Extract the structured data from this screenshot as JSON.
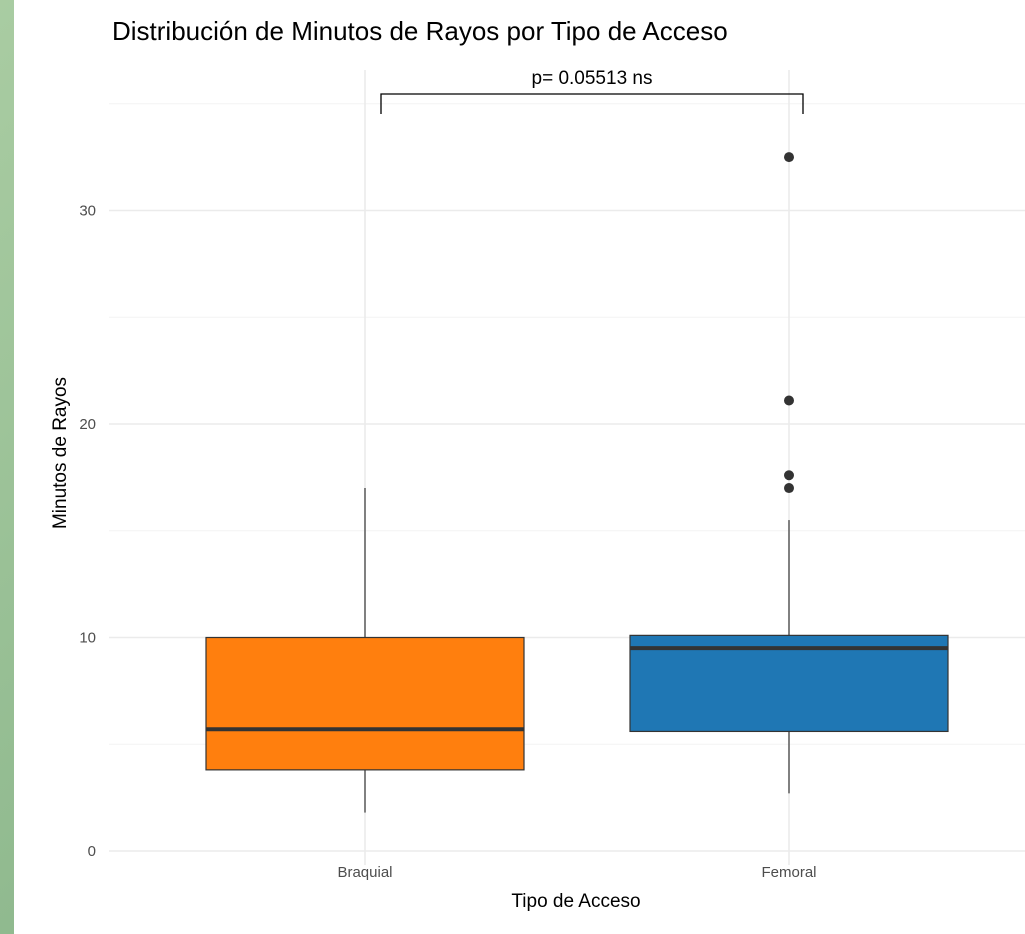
{
  "chart_data": {
    "type": "box",
    "title": "Distribución de Minutos de Rayos por Tipo de Acceso",
    "xlabel": "Tipo de Acceso",
    "ylabel": "Minutos de Rayos",
    "categories": [
      "Braquial",
      "Femoral"
    ],
    "yticks": [
      0,
      10,
      20,
      30
    ],
    "ylim": [
      -0.6,
      35.6
    ],
    "grid": true,
    "boxes": [
      {
        "category": "Braquial",
        "whisker_low": 1.8,
        "q1": 3.8,
        "median": 5.7,
        "q3": 10.0,
        "whisker_high": 17.0,
        "outliers": [],
        "color": "#ff7f0e"
      },
      {
        "category": "Femoral",
        "whisker_low": 2.7,
        "q1": 5.6,
        "median": 9.5,
        "q3": 10.1,
        "whisker_high": 15.5,
        "outliers": [
          17.0,
          17.6,
          21.1,
          32.5
        ],
        "color": "#1f77b4"
      }
    ],
    "annotation": {
      "text": "p= 0.05513 ns",
      "from": "Braquial",
      "to": "Femoral",
      "y": 35.6
    }
  }
}
